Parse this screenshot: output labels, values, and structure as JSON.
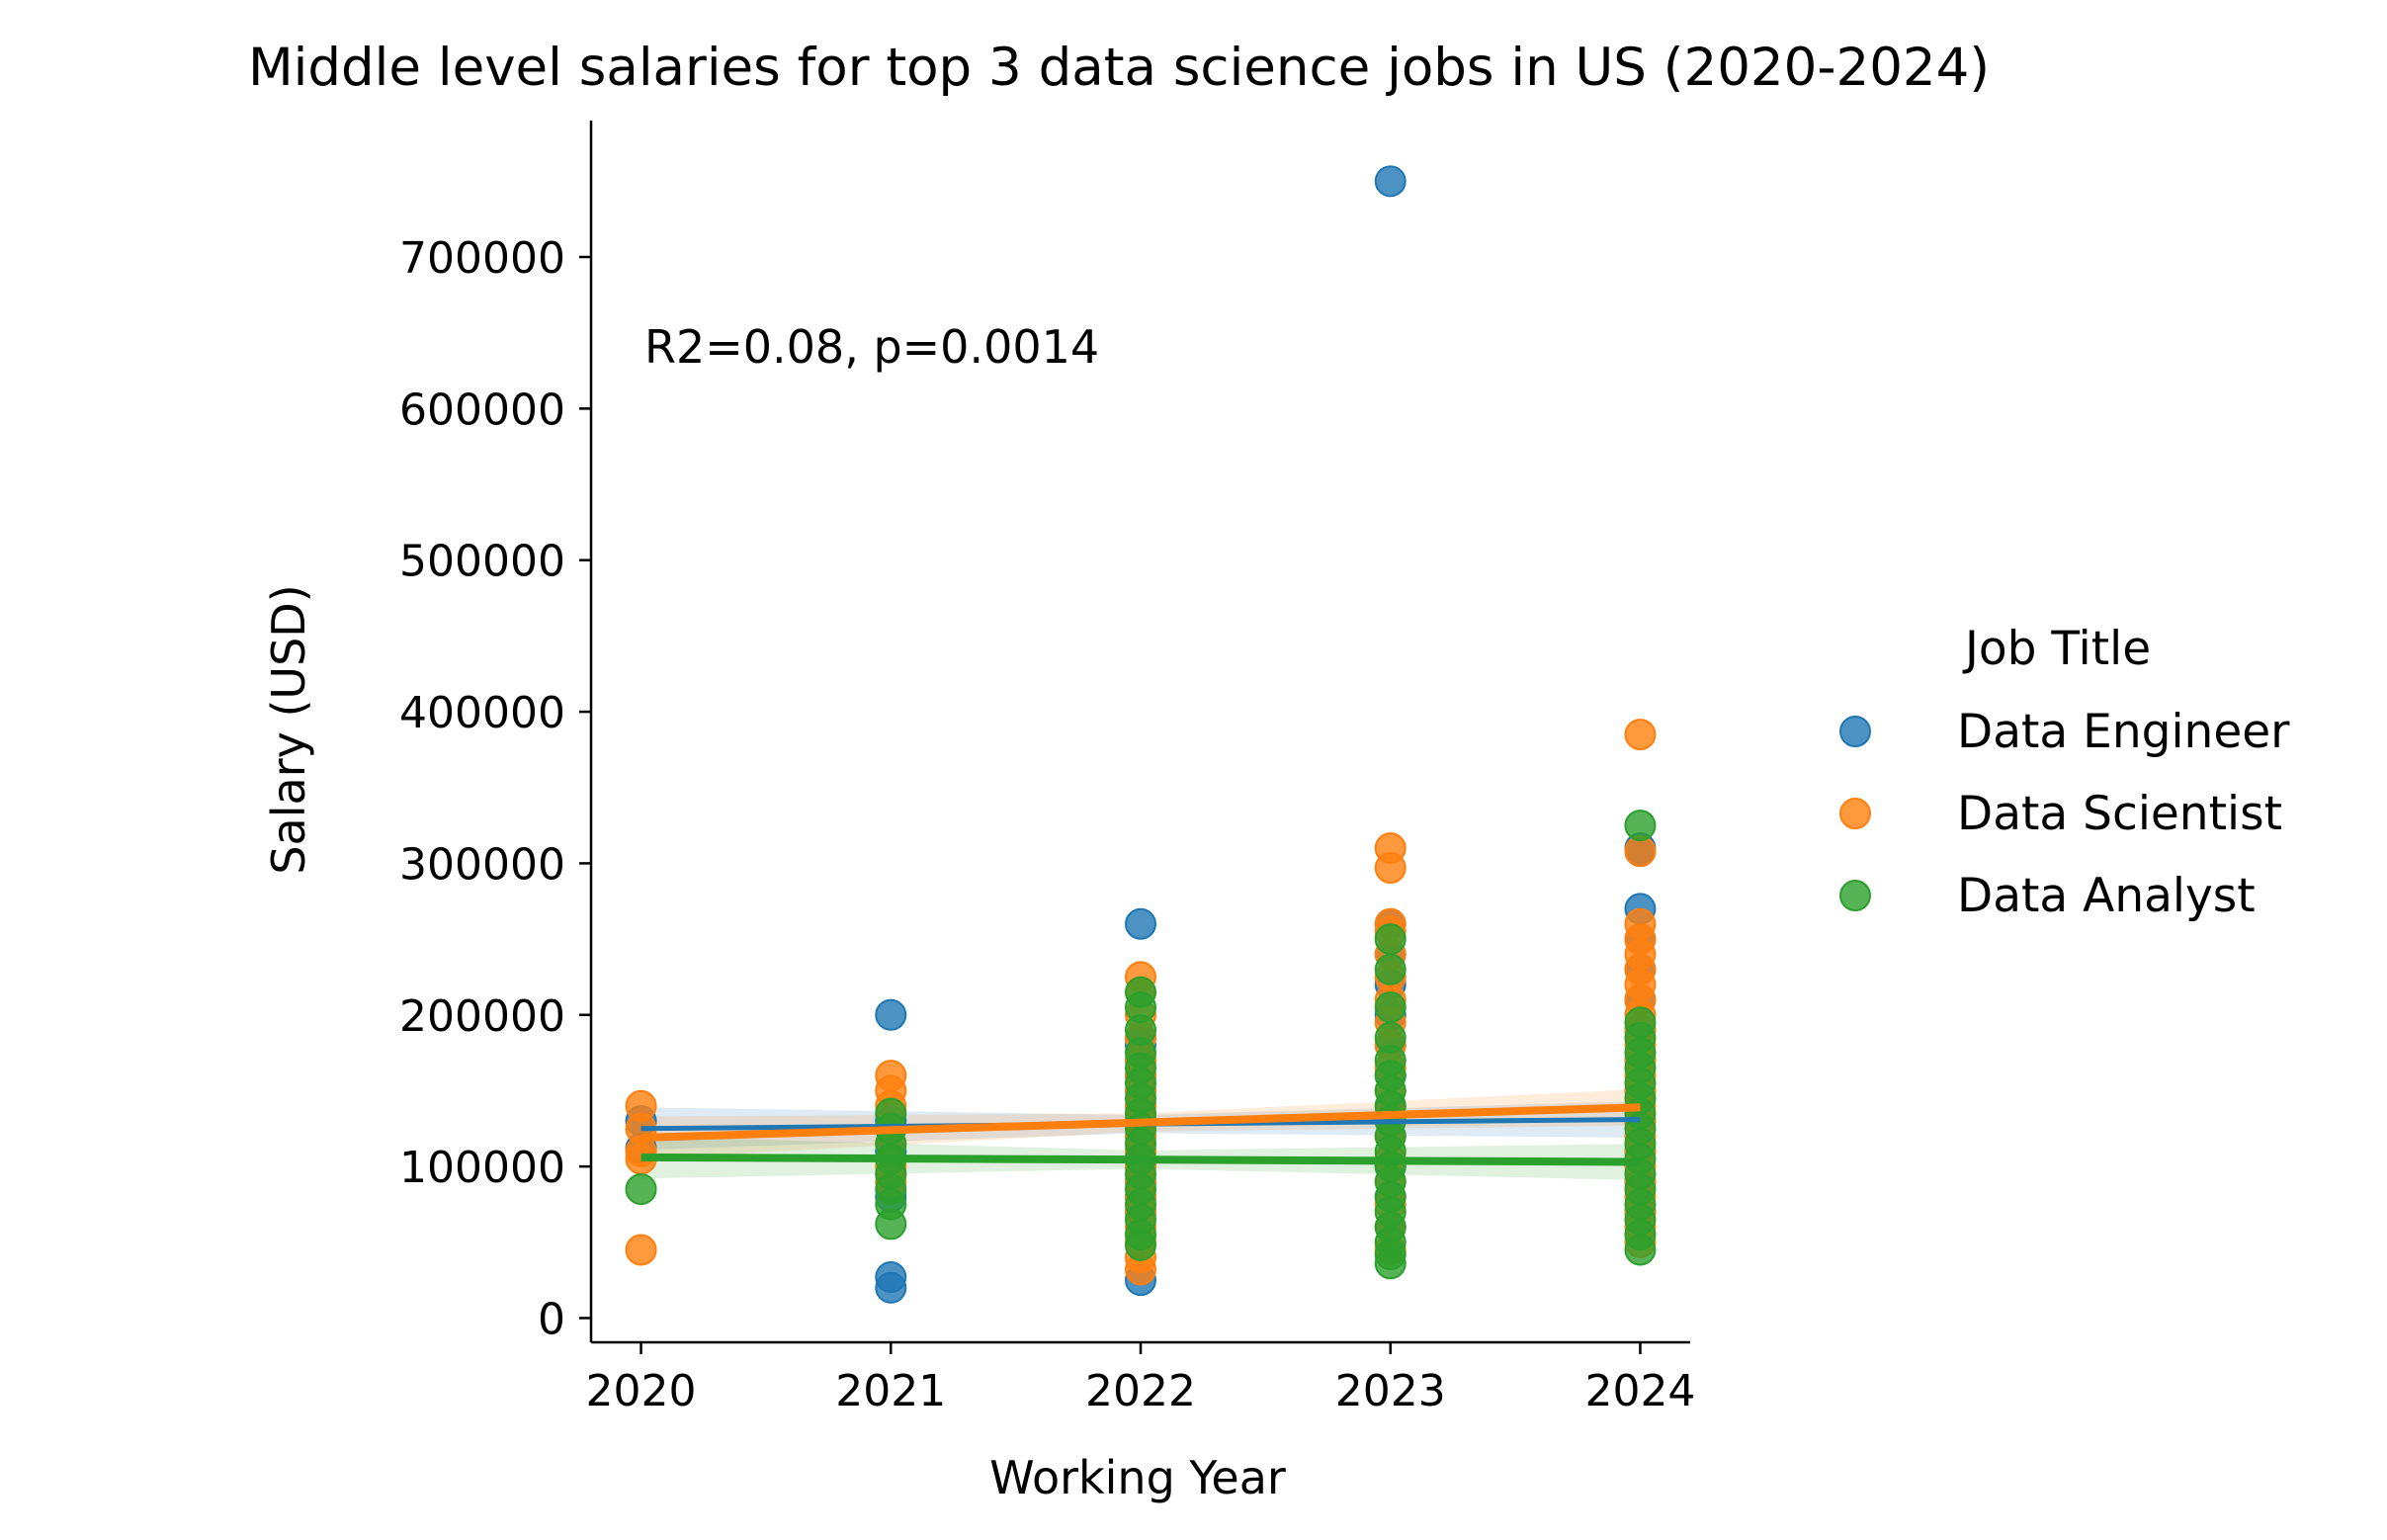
{
  "chart_data": {
    "type": "scatter",
    "title": "Middle level salaries for top 3 data science jobs in US (2020-2024)",
    "xlabel": "Working Year",
    "ylabel": "Salary (USD)",
    "annotation": "R2=0.08, p=0.0014",
    "x_ticks": [
      "2020",
      "2021",
      "2022",
      "2023",
      "2024"
    ],
    "y_ticks": [
      "0",
      "100000",
      "200000",
      "300000",
      "400000",
      "500000",
      "600000",
      "700000"
    ],
    "xlim": [
      2019.8,
      2024.2
    ],
    "ylim": [
      -16000,
      790000
    ],
    "legend": {
      "title": "Job Title",
      "placement": "right"
    },
    "series": [
      {
        "name": "Data Engineer",
        "color": "#1f77b4",
        "points": [
          [
            2020,
            130000
          ],
          [
            2020,
            112000
          ],
          [
            2021,
            200000
          ],
          [
            2021,
            130000
          ],
          [
            2021,
            110000
          ],
          [
            2021,
            95000
          ],
          [
            2021,
            80000
          ],
          [
            2021,
            27000
          ],
          [
            2021,
            20000
          ],
          [
            2022,
            260000
          ],
          [
            2022,
            185000
          ],
          [
            2022,
            180000
          ],
          [
            2022,
            170000
          ],
          [
            2022,
            160000
          ],
          [
            2022,
            150000
          ],
          [
            2022,
            140000
          ],
          [
            2022,
            130000
          ],
          [
            2022,
            120000
          ],
          [
            2022,
            110000
          ],
          [
            2022,
            100000
          ],
          [
            2022,
            90000
          ],
          [
            2022,
            80000
          ],
          [
            2022,
            70000
          ],
          [
            2022,
            25000
          ],
          [
            2023,
            750000
          ],
          [
            2023,
            260000
          ],
          [
            2023,
            240000
          ],
          [
            2023,
            220000
          ],
          [
            2023,
            200000
          ],
          [
            2023,
            180000
          ],
          [
            2023,
            160000
          ],
          [
            2023,
            140000
          ],
          [
            2023,
            120000
          ],
          [
            2023,
            100000
          ],
          [
            2023,
            80000
          ],
          [
            2023,
            60000
          ],
          [
            2024,
            310000
          ],
          [
            2024,
            308000
          ],
          [
            2024,
            270000
          ],
          [
            2024,
            250000
          ],
          [
            2024,
            230000
          ],
          [
            2024,
            210000
          ],
          [
            2024,
            190000
          ],
          [
            2024,
            170000
          ],
          [
            2024,
            150000
          ],
          [
            2024,
            130000
          ],
          [
            2024,
            110000
          ],
          [
            2024,
            90000
          ],
          [
            2024,
            70000
          ]
        ],
        "fit": {
          "start": [
            2020,
            125000
          ],
          "end": [
            2024,
            131000
          ]
        }
      },
      {
        "name": "Data Scientist",
        "color": "#ff7f0e",
        "points": [
          [
            2020,
            140000
          ],
          [
            2020,
            125000
          ],
          [
            2020,
            110000
          ],
          [
            2020,
            105000
          ],
          [
            2020,
            45000
          ],
          [
            2021,
            160000
          ],
          [
            2021,
            150000
          ],
          [
            2021,
            140000
          ],
          [
            2021,
            125000
          ],
          [
            2021,
            115000
          ],
          [
            2021,
            100000
          ],
          [
            2021,
            90000
          ],
          [
            2022,
            225000
          ],
          [
            2022,
            215000
          ],
          [
            2022,
            200000
          ],
          [
            2022,
            185000
          ],
          [
            2022,
            170000
          ],
          [
            2022,
            160000
          ],
          [
            2022,
            150000
          ],
          [
            2022,
            140000
          ],
          [
            2022,
            130000
          ],
          [
            2022,
            120000
          ],
          [
            2022,
            110000
          ],
          [
            2022,
            100000
          ],
          [
            2022,
            90000
          ],
          [
            2022,
            80000
          ],
          [
            2022,
            70000
          ],
          [
            2022,
            60000
          ],
          [
            2022,
            50000
          ],
          [
            2022,
            40000
          ],
          [
            2022,
            32000
          ],
          [
            2023,
            310000
          ],
          [
            2023,
            297000
          ],
          [
            2023,
            260000
          ],
          [
            2023,
            255000
          ],
          [
            2023,
            240000
          ],
          [
            2023,
            225000
          ],
          [
            2023,
            210000
          ],
          [
            2023,
            195000
          ],
          [
            2023,
            180000
          ],
          [
            2023,
            165000
          ],
          [
            2023,
            150000
          ],
          [
            2023,
            135000
          ],
          [
            2023,
            120000
          ],
          [
            2023,
            105000
          ],
          [
            2023,
            90000
          ],
          [
            2023,
            75000
          ],
          [
            2023,
            60000
          ],
          [
            2023,
            45000
          ],
          [
            2024,
            385000
          ],
          [
            2024,
            308000
          ],
          [
            2024,
            260000
          ],
          [
            2024,
            250000
          ],
          [
            2024,
            240000
          ],
          [
            2024,
            230000
          ],
          [
            2024,
            220000
          ],
          [
            2024,
            210000
          ],
          [
            2024,
            200000
          ],
          [
            2024,
            190000
          ],
          [
            2024,
            180000
          ],
          [
            2024,
            170000
          ],
          [
            2024,
            160000
          ],
          [
            2024,
            150000
          ],
          [
            2024,
            140000
          ],
          [
            2024,
            130000
          ],
          [
            2024,
            120000
          ],
          [
            2024,
            110000
          ],
          [
            2024,
            100000
          ],
          [
            2024,
            90000
          ],
          [
            2024,
            80000
          ],
          [
            2024,
            70000
          ],
          [
            2024,
            60000
          ],
          [
            2024,
            50000
          ]
        ],
        "fit": {
          "start": [
            2020,
            119000
          ],
          "end": [
            2024,
            139000
          ]
        }
      },
      {
        "name": "Data Analyst",
        "color": "#2ca02c",
        "points": [
          [
            2020,
            85000
          ],
          [
            2021,
            135000
          ],
          [
            2021,
            125000
          ],
          [
            2021,
            115000
          ],
          [
            2021,
            105000
          ],
          [
            2021,
            95000
          ],
          [
            2021,
            85000
          ],
          [
            2021,
            75000
          ],
          [
            2021,
            62000
          ],
          [
            2022,
            215000
          ],
          [
            2022,
            205000
          ],
          [
            2022,
            190000
          ],
          [
            2022,
            175000
          ],
          [
            2022,
            165000
          ],
          [
            2022,
            155000
          ],
          [
            2022,
            145000
          ],
          [
            2022,
            135000
          ],
          [
            2022,
            125000
          ],
          [
            2022,
            115000
          ],
          [
            2022,
            105000
          ],
          [
            2022,
            95000
          ],
          [
            2022,
            85000
          ],
          [
            2022,
            75000
          ],
          [
            2022,
            65000
          ],
          [
            2022,
            55000
          ],
          [
            2022,
            48000
          ],
          [
            2023,
            250000
          ],
          [
            2023,
            230000
          ],
          [
            2023,
            205000
          ],
          [
            2023,
            185000
          ],
          [
            2023,
            170000
          ],
          [
            2023,
            160000
          ],
          [
            2023,
            150000
          ],
          [
            2023,
            140000
          ],
          [
            2023,
            130000
          ],
          [
            2023,
            120000
          ],
          [
            2023,
            110000
          ],
          [
            2023,
            100000
          ],
          [
            2023,
            90000
          ],
          [
            2023,
            80000
          ],
          [
            2023,
            70000
          ],
          [
            2023,
            60000
          ],
          [
            2023,
            50000
          ],
          [
            2023,
            42000
          ],
          [
            2023,
            36000
          ],
          [
            2024,
            325000
          ],
          [
            2024,
            195000
          ],
          [
            2024,
            185000
          ],
          [
            2024,
            175000
          ],
          [
            2024,
            165000
          ],
          [
            2024,
            155000
          ],
          [
            2024,
            145000
          ],
          [
            2024,
            135000
          ],
          [
            2024,
            125000
          ],
          [
            2024,
            115000
          ],
          [
            2024,
            105000
          ],
          [
            2024,
            95000
          ],
          [
            2024,
            85000
          ],
          [
            2024,
            75000
          ],
          [
            2024,
            65000
          ],
          [
            2024,
            55000
          ],
          [
            2024,
            45000
          ]
        ],
        "fit": {
          "start": [
            2020,
            106000
          ],
          "end": [
            2024,
            103000
          ]
        }
      }
    ]
  }
}
